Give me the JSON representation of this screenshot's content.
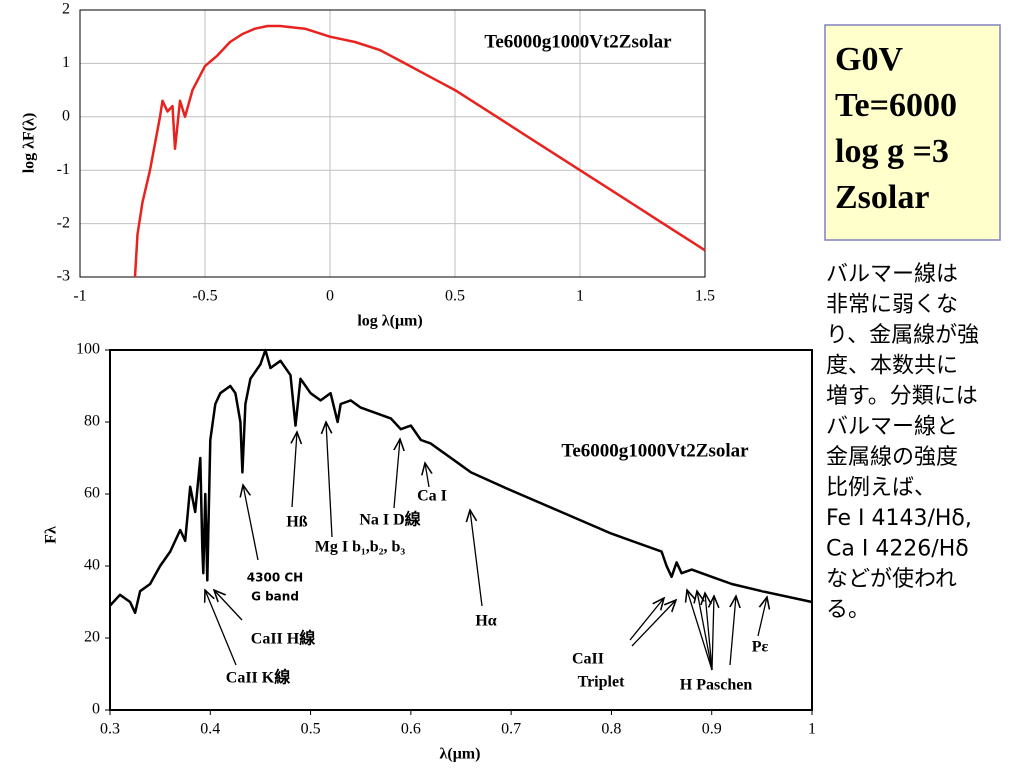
{
  "chart_data": [
    {
      "type": "line",
      "xlabel": "log λ(μm)",
      "ylabel": "log λF(λ)",
      "x": [
        -0.78,
        -0.77,
        -0.75,
        -0.72,
        -0.7,
        -0.68,
        -0.67,
        -0.65,
        -0.63,
        -0.62,
        -0.6,
        -0.58,
        -0.55,
        -0.5,
        -0.45,
        -0.4,
        -0.35,
        -0.3,
        -0.25,
        -0.2,
        -0.1,
        0,
        0.1,
        0.2,
        0.3,
        0.4,
        0.5,
        0.6,
        0.7,
        0.8,
        0.9,
        1.0,
        1.1,
        1.2,
        1.3,
        1.4,
        1.5
      ],
      "series": [
        {
          "name": "Te6000g1000Vt2Zsolar",
          "color": "#e8231f",
          "values": [
            -3,
            -2.2,
            -1.6,
            -1.0,
            -0.5,
            0.0,
            0.3,
            0.1,
            0.2,
            -0.6,
            0.3,
            0.0,
            0.5,
            0.95,
            1.15,
            1.4,
            1.55,
            1.65,
            1.7,
            1.7,
            1.65,
            1.5,
            1.4,
            1.25,
            1.0,
            0.75,
            0.5,
            0.2,
            -0.1,
            -0.4,
            -0.7,
            -1.0,
            -1.3,
            -1.6,
            -1.9,
            -2.2,
            -2.5
          ]
        }
      ],
      "xlim": [
        -1,
        1.5
      ],
      "xticks": [
        -1,
        -0.5,
        0,
        0.5,
        1,
        1.5
      ],
      "ylim": [
        -3,
        2
      ],
      "yticks": [
        -3,
        -2,
        -1,
        0,
        1,
        2
      ],
      "grid": true
    },
    {
      "type": "line",
      "xlabel": "λ(μm)",
      "ylabel": "Fλ",
      "x": [
        0.3,
        0.31,
        0.32,
        0.325,
        0.33,
        0.34,
        0.35,
        0.36,
        0.37,
        0.375,
        0.38,
        0.385,
        0.39,
        0.392,
        0.393,
        0.395,
        0.397,
        0.4,
        0.405,
        0.41,
        0.42,
        0.425,
        0.43,
        0.432,
        0.435,
        0.44,
        0.45,
        0.455,
        0.46,
        0.47,
        0.48,
        0.485,
        0.49,
        0.5,
        0.51,
        0.52,
        0.527,
        0.53,
        0.54,
        0.55,
        0.56,
        0.57,
        0.58,
        0.59,
        0.6,
        0.61,
        0.62,
        0.63,
        0.64,
        0.65,
        0.66,
        0.7,
        0.75,
        0.8,
        0.85,
        0.855,
        0.86,
        0.865,
        0.87,
        0.88,
        0.9,
        0.92,
        0.95,
        1.0
      ],
      "series": [
        {
          "name": "Te6000g1000Vt2Zsolar",
          "color": "#000000",
          "values": [
            29,
            32,
            30,
            27,
            33,
            35,
            40,
            44,
            50,
            47,
            62,
            55,
            70,
            45,
            38,
            60,
            36,
            75,
            85,
            88,
            90,
            88,
            80,
            66,
            85,
            92,
            96,
            100,
            95,
            97,
            93,
            79,
            92,
            88,
            86,
            88,
            80,
            85,
            86,
            84,
            83,
            82,
            81,
            78,
            79,
            75,
            74,
            72,
            70,
            68,
            66,
            61,
            55,
            49,
            44,
            40,
            37,
            41,
            38,
            39,
            37,
            35,
            33,
            30
          ]
        }
      ],
      "xlim": [
        0.3,
        1
      ],
      "xticks": [
        0.3,
        0.4,
        0.5,
        0.6,
        0.7,
        0.8,
        0.9,
        1
      ],
      "ylim": [
        0,
        100
      ],
      "yticks": [
        0,
        20,
        40,
        60,
        80,
        100
      ],
      "grid": false,
      "annotations": [
        [
          "4300 CH",
          "G band"
        ],
        [
          "Hß"
        ],
        [
          "Mg I b₁,b₂, b₃"
        ],
        [
          "Na I D線"
        ],
        [
          "Ca I"
        ],
        [
          "Hα"
        ],
        [
          "CaII H線"
        ],
        [
          "CaII K線"
        ],
        [
          "CaII",
          "Triplet"
        ],
        [
          "H Paschen"
        ],
        [
          "Pε"
        ]
      ]
    }
  ],
  "box": [
    "G0V",
    "Te=6000",
    "log g =3",
    "Zsolar"
  ],
  "note": [
    "バルマー線は",
    "非常に弱くな",
    "り、金属線が強",
    "度、本数共に",
    "増す。分類には",
    "バルマー線と",
    "金属線の強度",
    "比例えば、",
    "Fe I 4143/Hδ,",
    "Ca I 4226/Hδ",
    "などが使われ",
    "る。"
  ]
}
